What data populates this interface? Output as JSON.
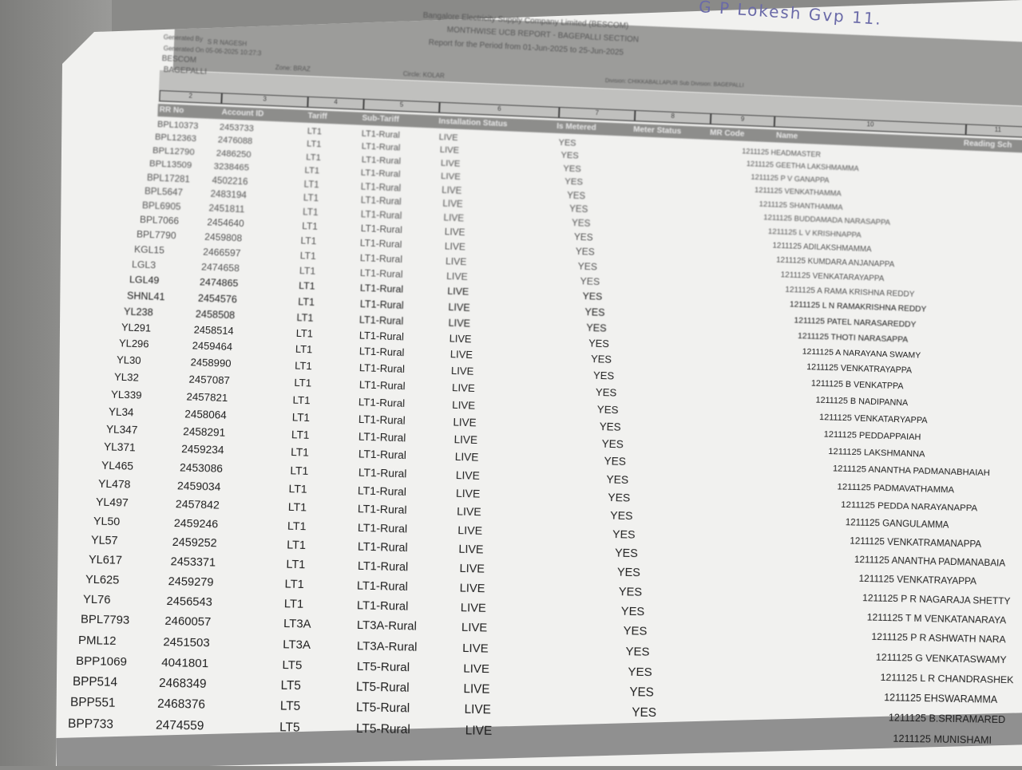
{
  "handwriting": "G P Lokesh   Gvp 11.",
  "report": {
    "company": "Bangalore Electricity Supply Company Limited (BESCOM)",
    "title": "MONTHWISE UCB REPORT - BAGEPALLI SECTION",
    "period": "Report for the Period from 01-Jun-2025 to 25-Jun-2025",
    "generated_by_label": "Generated By",
    "generated_by": "S R NAGESH",
    "generated_on": "Generated On 05-06-2025 10:27:3",
    "org": "BESCOM",
    "section": "BAGEPALLI",
    "zone": "Zone: BRAZ",
    "circle": "Circle: KOLAR",
    "division": "Division: CHIKKABALLAPUR   Sub Division: BAGEPALLI"
  },
  "column_numbers": [
    "2",
    "3",
    "4",
    "5",
    "6",
    "7",
    "8",
    "9",
    "10",
    "11"
  ],
  "columns": [
    "RR No",
    "Account ID",
    "Tariff",
    "Sub-Tariff",
    "Installation Status",
    "Is Metered",
    "Meter Status",
    "MR Code",
    "Name",
    "Reading Sch"
  ],
  "rows": [
    [
      "BPL10373",
      "2453733",
      "LT1",
      "LT1-Rural",
      "LIVE",
      "YES",
      "1211125 HEADMASTER"
    ],
    [
      "BPL12363",
      "2476088",
      "LT1",
      "LT1-Rural",
      "LIVE",
      "YES",
      "1211125 GEETHA LAKSHMAMMA"
    ],
    [
      "BPL12790",
      "2486250",
      "LT1",
      "LT1-Rural",
      "LIVE",
      "YES",
      "1211125 P V GANAPPA"
    ],
    [
      "BPL13509",
      "3238465",
      "LT1",
      "LT1-Rural",
      "LIVE",
      "YES",
      "1211125 VENKATHAMMA"
    ],
    [
      "BPL17281",
      "4502216",
      "LT1",
      "LT1-Rural",
      "LIVE",
      "YES",
      "1211125 SHANTHAMMA"
    ],
    [
      "BPL5647",
      "2483194",
      "LT1",
      "LT1-Rural",
      "LIVE",
      "YES",
      "1211125 BUDDAMADA NARASAPPA"
    ],
    [
      "BPL6905",
      "2451811",
      "LT1",
      "LT1-Rural",
      "LIVE",
      "YES",
      "1211125 L V KRISHNAPPA"
    ],
    [
      "BPL7066",
      "2454640",
      "LT1",
      "LT1-Rural",
      "LIVE",
      "YES",
      "1211125 ADILAKSHMAMMA"
    ],
    [
      "BPL7790",
      "2459808",
      "LT1",
      "LT1-Rural",
      "LIVE",
      "YES",
      "1211125 KUMDARA ANJANAPPA"
    ],
    [
      "KGL15",
      "2466597",
      "LT1",
      "LT1-Rural",
      "LIVE",
      "YES",
      "1211125 VENKATARAYAPPA"
    ],
    [
      "LGL3",
      "2474658",
      "LT1",
      "LT1-Rural",
      "LIVE",
      "YES",
      "1211125 A RAMA KRISHNA REDDY"
    ],
    [
      "LGL49",
      "2474865",
      "LT1",
      "LT1-Rural",
      "LIVE",
      "YES",
      "1211125 L N RAMAKRISHNA REDDY"
    ],
    [
      "SHNL41",
      "2454576",
      "LT1",
      "LT1-Rural",
      "LIVE",
      "YES",
      "1211125 PATEL NARASAREDDY"
    ],
    [
      "YL238",
      "2458508",
      "LT1",
      "LT1-Rural",
      "LIVE",
      "YES",
      "1211125 THOTI NARASAPPA"
    ],
    [
      "YL291",
      "2458514",
      "LT1",
      "LT1-Rural",
      "LIVE",
      "YES",
      "1211125 A NARAYANA SWAMY"
    ],
    [
      "YL296",
      "2459464",
      "LT1",
      "LT1-Rural",
      "LIVE",
      "YES",
      "1211125 VENKATRAYAPPA"
    ],
    [
      "YL30",
      "2458990",
      "LT1",
      "LT1-Rural",
      "LIVE",
      "YES",
      "1211125 B VENKATPPA"
    ],
    [
      "YL32",
      "2457087",
      "LT1",
      "LT1-Rural",
      "LIVE",
      "YES",
      "1211125 B NADIPANNA"
    ],
    [
      "YL339",
      "2457821",
      "LT1",
      "LT1-Rural",
      "LIVE",
      "YES",
      "1211125 VENKATARYAPPA"
    ],
    [
      "YL34",
      "2458064",
      "LT1",
      "LT1-Rural",
      "LIVE",
      "YES",
      "1211125 PEDDAPPAIAH"
    ],
    [
      "YL347",
      "2458291",
      "LT1",
      "LT1-Rural",
      "LIVE",
      "YES",
      "1211125 LAKSHMANNA"
    ],
    [
      "YL371",
      "2459234",
      "LT1",
      "LT1-Rural",
      "LIVE",
      "YES",
      "1211125 ANANTHA PADMANABHAIAH"
    ],
    [
      "YL465",
      "2453086",
      "LT1",
      "LT1-Rural",
      "LIVE",
      "YES",
      "1211125 PADMAVATHAMMA"
    ],
    [
      "YL478",
      "2459034",
      "LT1",
      "LT1-Rural",
      "LIVE",
      "YES",
      "1211125 PEDDA NARAYANAPPA"
    ],
    [
      "YL497",
      "2457842",
      "LT1",
      "LT1-Rural",
      "LIVE",
      "YES",
      "1211125 GANGULAMMA"
    ],
    [
      "YL50",
      "2459246",
      "LT1",
      "LT1-Rural",
      "LIVE",
      "YES",
      "1211125 VENKATRAMANAPPA"
    ],
    [
      "YL57",
      "2459252",
      "LT1",
      "LT1-Rural",
      "LIVE",
      "YES",
      "1211125 ANANTHA PADMANABAIA"
    ],
    [
      "YL617",
      "2453371",
      "LT1",
      "LT1-Rural",
      "LIVE",
      "YES",
      "1211125 VENKATRAYAPPA"
    ],
    [
      "YL625",
      "2459279",
      "LT1",
      "LT1-Rural",
      "LIVE",
      "YES",
      "1211125 P R NAGARAJA SHETTY"
    ],
    [
      "YL76",
      "2456543",
      "LT1",
      "LT1-Rural",
      "LIVE",
      "YES",
      "1211125 T M VENKATANARAYA"
    ],
    [
      "BPL7793",
      "2460057",
      "LT3A",
      "LT3A-Rural",
      "LIVE",
      "YES",
      "1211125 P R ASHWATH NARA"
    ],
    [
      "PML12",
      "2451503",
      "LT3A",
      "LT3A-Rural",
      "LIVE",
      "YES",
      "1211125 G VENKATASWAMY"
    ],
    [
      "BPP1069",
      "4041801",
      "LT5",
      "LT5-Rural",
      "LIVE",
      "YES",
      "1211125 L R CHANDRASHEK"
    ],
    [
      "BPP514",
      "2468349",
      "LT5",
      "LT5-Rural",
      "LIVE",
      "YES",
      "1211125 EHSWARAMMA"
    ],
    [
      "BPP551",
      "2468376",
      "LT5",
      "LT5-Rural",
      "LIVE",
      "YES",
      "1211125 B.SRIRAMARED"
    ],
    [
      "BPP733",
      "2474559",
      "LT5",
      "LT5-Rural",
      "LIVE",
      "",
      "1211125 MUNISHAMI"
    ]
  ]
}
